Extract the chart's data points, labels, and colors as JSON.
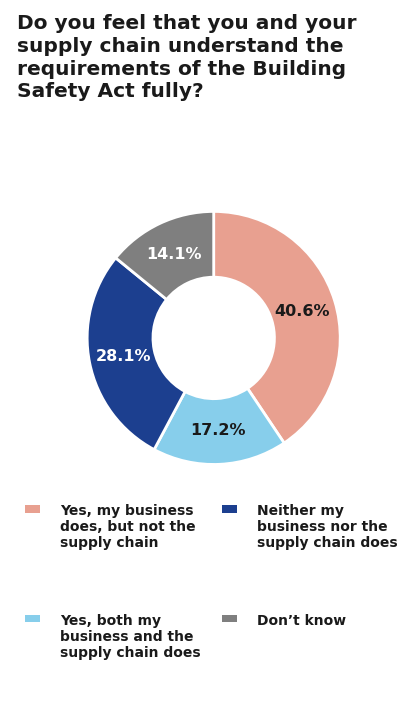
{
  "title": "Do you feel that you and your supply chain understand the requirements of the Building Safety Act fully?",
  "slices": [
    40.6,
    17.2,
    28.1,
    14.1
  ],
  "colors": [
    "#E8A090",
    "#87CEEB",
    "#1C3F8F",
    "#7F7F7F"
  ],
  "pct_labels": [
    "40.6%",
    "17.2%",
    "28.1%",
    "14.1%"
  ],
  "pct_colors": [
    "#1a1a1a",
    "#1a1a1a",
    "#ffffff",
    "#ffffff"
  ],
  "start_angle": 90,
  "counterclock": false,
  "donut_width": 0.52,
  "legend_items": [
    {
      "color": "#E8A090",
      "text": "Yes, my business\ndoes, but not the\nsupply chain"
    },
    {
      "color": "#1C3F8F",
      "text": "Neither my\nbusiness nor the\nsupply chain does"
    },
    {
      "color": "#87CEEB",
      "text": "Yes, both my\nbusiness and the\nsupply chain does"
    },
    {
      "color": "#7F7F7F",
      "text": "Don’t know"
    }
  ],
  "background_color": "#ffffff",
  "title_fontsize": 14.5,
  "label_fontsize": 11.5,
  "legend_fontsize": 10.0
}
